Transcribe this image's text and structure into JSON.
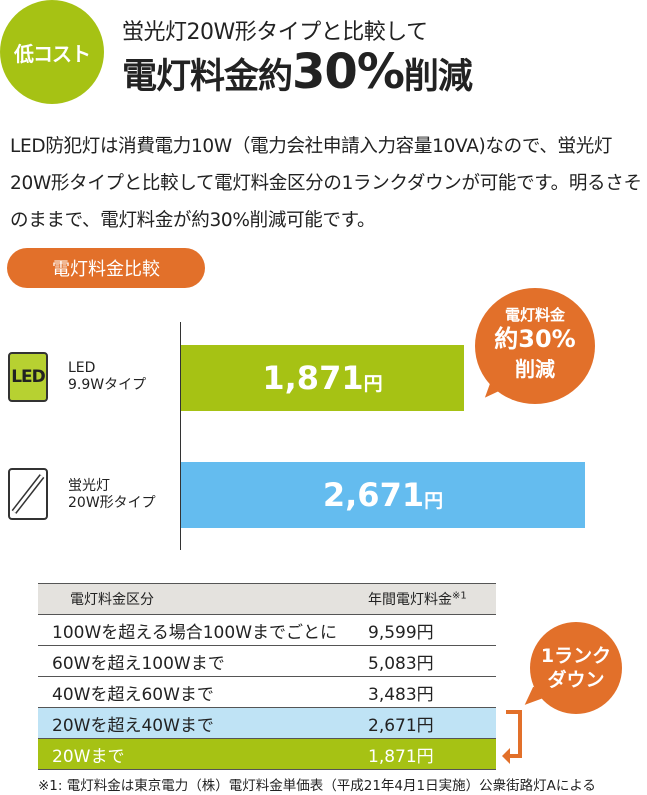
{
  "header": {
    "badge": "低コスト",
    "subtitle": "蛍光灯20W形タイプと比較して",
    "title_pre": "電灯料金約",
    "title_big": "30%",
    "title_post": "削減"
  },
  "intro": "LED防犯灯は消費電力10W（電力会社申請入力容量10VA)なので、蛍光灯20W形タイプと比較して電灯料金区分の1ランクダウンが可能です。明るさそのままで、電灯料金が約30%削減可能です。",
  "section_label": "電灯料金比較",
  "colors": {
    "green": "#a6c214",
    "blue": "#64bcef",
    "orange": "#e2702a",
    "light_blue": "#bfe3f5"
  },
  "chart_data": {
    "type": "bar",
    "orientation": "horizontal",
    "categories": [
      {
        "icon": "led-icon",
        "icon_text": "LED",
        "line1": "LED",
        "line2": "9.9Wタイプ"
      },
      {
        "icon": "fluorescent-tube-icon",
        "line1": "蛍光灯",
        "line2": "20W形タイプ"
      }
    ],
    "values": [
      1871,
      2671
    ],
    "labels": [
      "1,871",
      "2,671"
    ],
    "unit": "円",
    "callout": {
      "line1": "電灯料金",
      "line2": "約30%",
      "line3": "削減"
    }
  },
  "table": {
    "headers": [
      "電灯料金区分",
      "年間電灯料金",
      "※1"
    ],
    "rows": [
      [
        "100Wを超える場合100Wまでごとに",
        "9,599円"
      ],
      [
        "60Wを超え100Wまで",
        "5,083円"
      ],
      [
        "40Wを超え60Wまで",
        "3,483円"
      ],
      [
        "20Wを超え40Wまで",
        "2,671円"
      ],
      [
        "20Wまで",
        "1,871円"
      ]
    ],
    "rank_down": {
      "line1": "1ランク",
      "line2": "ダウン"
    }
  },
  "footnote": "※1: 電灯料金は東京電力（株）電灯料金単価表（平成21年4月1日実施）公衆街路灯Aによる"
}
